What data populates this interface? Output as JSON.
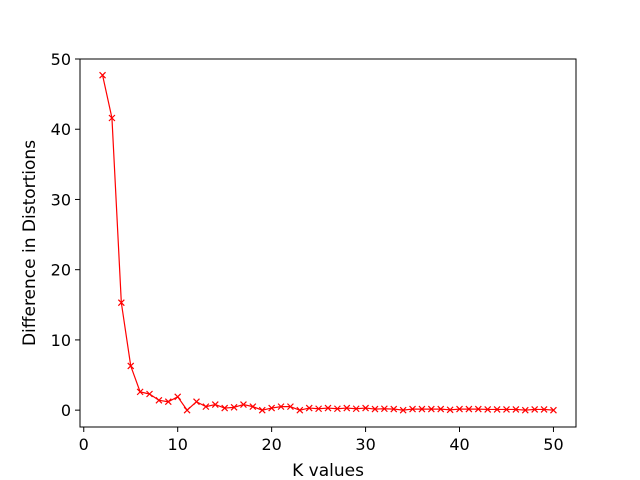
{
  "chart_data": {
    "type": "line",
    "title": "",
    "xlabel": "K values",
    "ylabel": "Difference in Distortions",
    "xlim": [
      -0.4,
      52.4
    ],
    "ylim": [
      -2.4,
      50
    ],
    "xticks": [
      0,
      10,
      20,
      30,
      40,
      50
    ],
    "yticks": [
      0,
      10,
      20,
      30,
      40,
      50
    ],
    "grid": false,
    "series": [
      {
        "name": "Difference in Distortions",
        "color": "#ff0000",
        "marker": "x",
        "x": [
          2,
          3,
          4,
          5,
          6,
          7,
          8,
          9,
          10,
          11,
          12,
          13,
          14,
          15,
          16,
          17,
          18,
          19,
          20,
          21,
          22,
          23,
          24,
          25,
          26,
          27,
          28,
          29,
          30,
          31,
          32,
          33,
          34,
          35,
          36,
          37,
          38,
          39,
          40,
          41,
          42,
          43,
          44,
          45,
          46,
          47,
          48,
          49,
          50
        ],
        "y": [
          47.7,
          41.6,
          15.3,
          6.3,
          2.6,
          2.3,
          1.4,
          1.2,
          1.9,
          0.0,
          1.2,
          0.5,
          0.8,
          0.3,
          0.4,
          0.8,
          0.5,
          0.0,
          0.3,
          0.5,
          0.5,
          0.0,
          0.3,
          0.2,
          0.3,
          0.2,
          0.3,
          0.2,
          0.3,
          0.15,
          0.2,
          0.15,
          0.0,
          0.15,
          0.15,
          0.15,
          0.15,
          0.05,
          0.15,
          0.15,
          0.15,
          0.1,
          0.1,
          0.1,
          0.1,
          0.0,
          0.1,
          0.1,
          0.0
        ]
      }
    ]
  }
}
